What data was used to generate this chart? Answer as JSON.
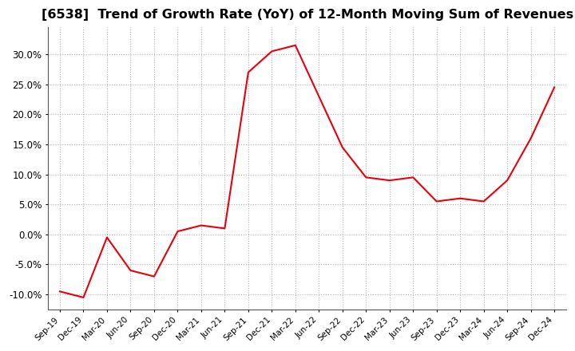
{
  "title": "[6538]  Trend of Growth Rate (YoY) of 12-Month Moving Sum of Revenues",
  "title_fontsize": 11.5,
  "line_color": "#e8000d",
  "line_width": 1.5,
  "background_color": "#ffffff",
  "grid_color": "#b0b0b0",
  "ylim": [
    -0.125,
    0.345
  ],
  "yticks": [
    -0.1,
    -0.05,
    0.0,
    0.05,
    0.1,
    0.15,
    0.2,
    0.25,
    0.3
  ],
  "x_labels": [
    "Sep-19",
    "Dec-19",
    "Mar-20",
    "Jun-20",
    "Sep-20",
    "Dec-20",
    "Mar-21",
    "Jun-21",
    "Sep-21",
    "Dec-21",
    "Mar-22",
    "Jun-22",
    "Sep-22",
    "Dec-22",
    "Mar-23",
    "Jun-23",
    "Sep-23",
    "Dec-23",
    "Mar-24",
    "Jun-24",
    "Sep-24",
    "Dec-24"
  ],
  "y_values": [
    -0.095,
    -0.105,
    -0.005,
    -0.06,
    -0.07,
    0.005,
    0.015,
    0.01,
    0.27,
    0.305,
    0.315,
    0.23,
    0.145,
    0.095,
    0.09,
    0.095,
    0.055,
    0.06,
    0.055,
    0.09,
    0.16,
    0.245
  ]
}
